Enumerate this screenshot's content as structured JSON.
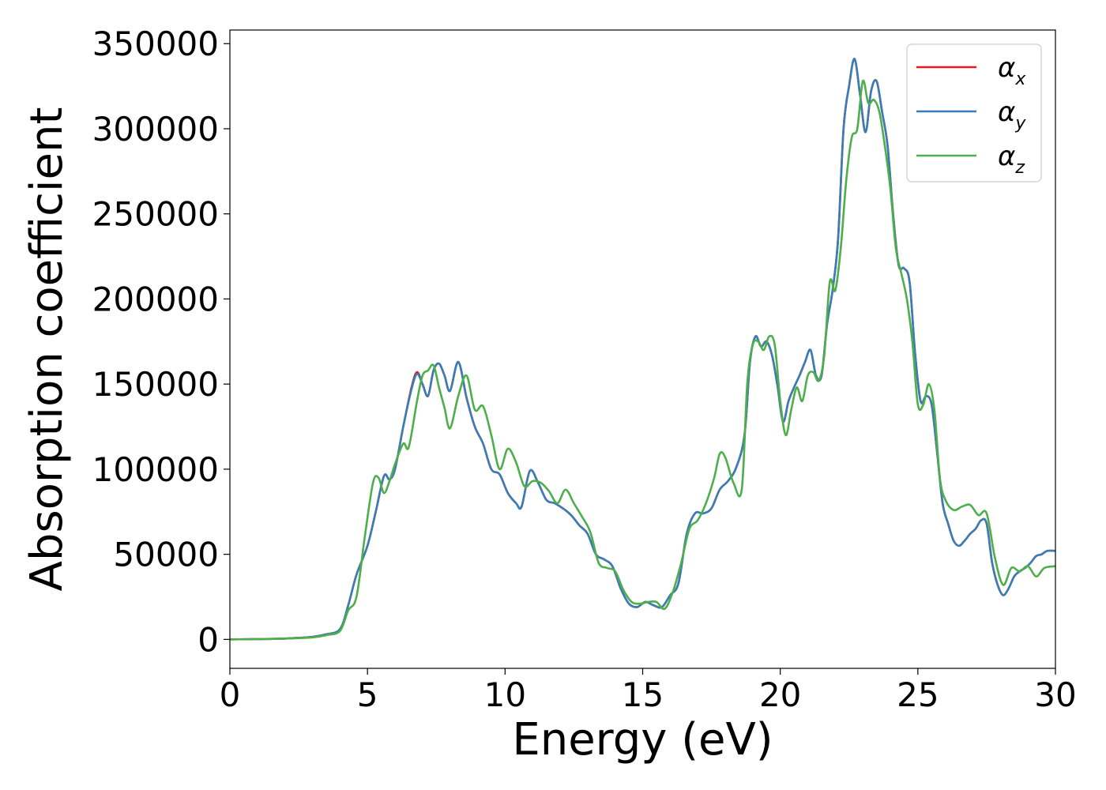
{
  "chart_data": {
    "type": "line",
    "title": "",
    "xlabel": "Energy (eV)",
    "ylabel": "Absorption coefficient",
    "xlim": [
      0,
      30
    ],
    "ylim": [
      -17000,
      358000
    ],
    "xticks": [
      0,
      5,
      10,
      15,
      20,
      25,
      30
    ],
    "yticks": [
      0,
      50000,
      100000,
      150000,
      200000,
      250000,
      300000,
      350000
    ],
    "grid": false,
    "legend_position": "top-right",
    "series": [
      {
        "name": "αx",
        "legend_base": "α",
        "legend_sub": "x",
        "color": "#e41a1c",
        "x": [
          0,
          1,
          2,
          3,
          3.5,
          4.0,
          4.3,
          4.6,
          5.0,
          5.3,
          5.6,
          5.8,
          6.0,
          6.3,
          6.6,
          6.8,
          7.0,
          7.2,
          7.4,
          7.6,
          7.8,
          8.0,
          8.3,
          8.6,
          8.9,
          9.2,
          9.5,
          9.8,
          10.1,
          10.4,
          10.6,
          10.9,
          11.2,
          11.5,
          11.8,
          12.1,
          12.4,
          12.7,
          13.0,
          13.3,
          13.6,
          13.9,
          14.2,
          14.5,
          14.8,
          15.1,
          15.4,
          15.7,
          16.0,
          16.3,
          16.6,
          16.9,
          17.2,
          17.5,
          17.8,
          18.1,
          18.4,
          18.7,
          18.9,
          19.1,
          19.3,
          19.5,
          19.7,
          19.9,
          20.1,
          20.3,
          20.5,
          20.7,
          20.9,
          21.1,
          21.3,
          21.5,
          21.7,
          21.9,
          22.1,
          22.3,
          22.5,
          22.7,
          22.9,
          23.1,
          23.3,
          23.5,
          23.7,
          23.9,
          24.1,
          24.3,
          24.5,
          24.7,
          24.9,
          25.1,
          25.3,
          25.5,
          25.7,
          25.9,
          26.1,
          26.3,
          26.5,
          26.7,
          26.9,
          27.1,
          27.3,
          27.5,
          27.7,
          27.9,
          28.1,
          28.3,
          28.5,
          28.7,
          28.9,
          29.1,
          29.3,
          29.5,
          29.7,
          30.0
        ],
        "y": [
          0,
          200,
          500,
          1500,
          3000,
          6000,
          20000,
          38000,
          55000,
          75000,
          96000,
          94000,
          100000,
          125000,
          148000,
          157000,
          150000,
          143000,
          158000,
          162000,
          155000,
          146000,
          163000,
          142000,
          125000,
          115000,
          100000,
          97000,
          86000,
          80000,
          78000,
          99000,
          92000,
          82000,
          80000,
          77000,
          73000,
          67000,
          62000,
          50000,
          47000,
          43000,
          30000,
          21000,
          19000,
          22000,
          20000,
          19000,
          26000,
          33000,
          62000,
          74000,
          74000,
          77000,
          88000,
          93000,
          101000,
          120000,
          163000,
          178000,
          172000,
          175000,
          167000,
          149000,
          128000,
          140000,
          148000,
          155000,
          163000,
          170000,
          155000,
          155000,
          185000,
          205000,
          235000,
          300000,
          325000,
          341000,
          320000,
          298000,
          322000,
          328000,
          310000,
          290000,
          250000,
          220000,
          218000,
          210000,
          168000,
          140000,
          143000,
          138000,
          110000,
          80000,
          68000,
          58000,
          55000,
          58000,
          62000,
          65000,
          70000,
          68000,
          45000,
          32000,
          26000,
          30000,
          37000,
          40000,
          42000,
          45000,
          49000,
          50000,
          52000,
          52000
        ]
      },
      {
        "name": "αy",
        "legend_base": "α",
        "legend_sub": "y",
        "color": "#377eb8",
        "x": [
          0,
          1,
          2,
          3,
          3.5,
          4.0,
          4.3,
          4.6,
          5.0,
          5.3,
          5.6,
          5.8,
          6.0,
          6.3,
          6.6,
          6.8,
          7.0,
          7.2,
          7.4,
          7.6,
          7.8,
          8.0,
          8.3,
          8.6,
          8.9,
          9.2,
          9.5,
          9.8,
          10.1,
          10.4,
          10.6,
          10.9,
          11.2,
          11.5,
          11.8,
          12.1,
          12.4,
          12.7,
          13.0,
          13.3,
          13.6,
          13.9,
          14.2,
          14.5,
          14.8,
          15.1,
          15.4,
          15.7,
          16.0,
          16.3,
          16.6,
          16.9,
          17.2,
          17.5,
          17.8,
          18.1,
          18.4,
          18.7,
          18.9,
          19.1,
          19.3,
          19.5,
          19.7,
          19.9,
          20.1,
          20.3,
          20.5,
          20.7,
          20.9,
          21.1,
          21.3,
          21.5,
          21.7,
          21.9,
          22.1,
          22.3,
          22.5,
          22.7,
          22.9,
          23.1,
          23.3,
          23.5,
          23.7,
          23.9,
          24.1,
          24.3,
          24.5,
          24.7,
          24.9,
          25.1,
          25.3,
          25.5,
          25.7,
          25.9,
          26.1,
          26.3,
          26.5,
          26.7,
          26.9,
          27.1,
          27.3,
          27.5,
          27.7,
          27.9,
          28.1,
          28.3,
          28.5,
          28.7,
          28.9,
          29.1,
          29.3,
          29.5,
          29.7,
          30.0
        ],
        "y": [
          0,
          200,
          500,
          1500,
          3000,
          6000,
          20000,
          38000,
          55000,
          75000,
          96000,
          94000,
          100000,
          125000,
          147000,
          156000,
          150000,
          143000,
          158000,
          162000,
          155000,
          146000,
          163000,
          142000,
          125000,
          115000,
          100000,
          97000,
          86000,
          80000,
          78000,
          99000,
          92000,
          82000,
          80000,
          77000,
          73000,
          67000,
          62000,
          50000,
          47000,
          43000,
          30000,
          21000,
          19000,
          22000,
          20000,
          19000,
          26000,
          33000,
          62000,
          74000,
          74000,
          77000,
          88000,
          93000,
          101000,
          120000,
          163000,
          178000,
          172000,
          175000,
          167000,
          149000,
          128000,
          140000,
          148000,
          155000,
          163000,
          170000,
          155000,
          155000,
          185000,
          205000,
          235000,
          300000,
          325000,
          341000,
          320000,
          298000,
          322000,
          328000,
          310000,
          290000,
          250000,
          220000,
          218000,
          210000,
          168000,
          140000,
          143000,
          138000,
          110000,
          80000,
          68000,
          58000,
          55000,
          58000,
          62000,
          65000,
          70000,
          68000,
          45000,
          32000,
          26000,
          30000,
          37000,
          40000,
          42000,
          45000,
          49000,
          50000,
          52000,
          52000
        ]
      },
      {
        "name": "αz",
        "legend_base": "α",
        "legend_sub": "z",
        "color": "#4daf4a",
        "x": [
          0,
          1,
          2,
          3,
          3.5,
          4.0,
          4.3,
          4.6,
          4.9,
          5.2,
          5.4,
          5.6,
          5.8,
          6.0,
          6.3,
          6.5,
          6.8,
          7.0,
          7.2,
          7.4,
          7.6,
          7.8,
          8.0,
          8.3,
          8.6,
          8.9,
          9.2,
          9.5,
          9.8,
          10.1,
          10.4,
          10.7,
          11.0,
          11.3,
          11.6,
          11.9,
          12.2,
          12.5,
          12.8,
          13.1,
          13.4,
          13.7,
          14.0,
          14.3,
          14.6,
          14.9,
          15.2,
          15.5,
          15.8,
          16.1,
          16.4,
          16.7,
          17.0,
          17.3,
          17.6,
          17.8,
          18.0,
          18.3,
          18.6,
          18.8,
          19.0,
          19.2,
          19.4,
          19.6,
          19.8,
          20.0,
          20.2,
          20.4,
          20.6,
          20.8,
          21.0,
          21.2,
          21.4,
          21.6,
          21.8,
          22.0,
          22.2,
          22.4,
          22.6,
          22.8,
          23.0,
          23.2,
          23.4,
          23.6,
          23.8,
          24.0,
          24.2,
          24.4,
          24.6,
          24.8,
          25.0,
          25.2,
          25.4,
          25.6,
          25.8,
          26.0,
          26.3,
          26.6,
          26.9,
          27.2,
          27.5,
          27.8,
          28.1,
          28.4,
          28.7,
          29.0,
          29.3,
          29.6,
          30.0
        ],
        "y": [
          0,
          200,
          500,
          1200,
          2500,
          5000,
          17000,
          25000,
          60000,
          92000,
          95000,
          86000,
          93000,
          103000,
          115000,
          113000,
          140000,
          155000,
          158000,
          161000,
          148000,
          136000,
          124000,
          143000,
          155000,
          135000,
          137000,
          120000,
          100000,
          112000,
          104000,
          90000,
          93000,
          92000,
          87000,
          80000,
          88000,
          80000,
          72000,
          63000,
          45000,
          42000,
          40000,
          29000,
          22000,
          21000,
          22000,
          22000,
          18000,
          28000,
          45000,
          65000,
          70000,
          80000,
          95000,
          109000,
          107000,
          92000,
          88000,
          150000,
          173000,
          175000,
          170000,
          178000,
          173000,
          140000,
          120000,
          135000,
          148000,
          140000,
          155000,
          157000,
          152000,
          167000,
          210000,
          205000,
          230000,
          270000,
          295000,
          300000,
          328000,
          315000,
          317000,
          310000,
          290000,
          265000,
          230000,
          215000,
          200000,
          175000,
          138000,
          138000,
          150000,
          135000,
          95000,
          82000,
          76000,
          78000,
          79000,
          73000,
          74000,
          48000,
          32000,
          42000,
          40000,
          43000,
          37000,
          42000,
          43000
        ]
      }
    ]
  }
}
